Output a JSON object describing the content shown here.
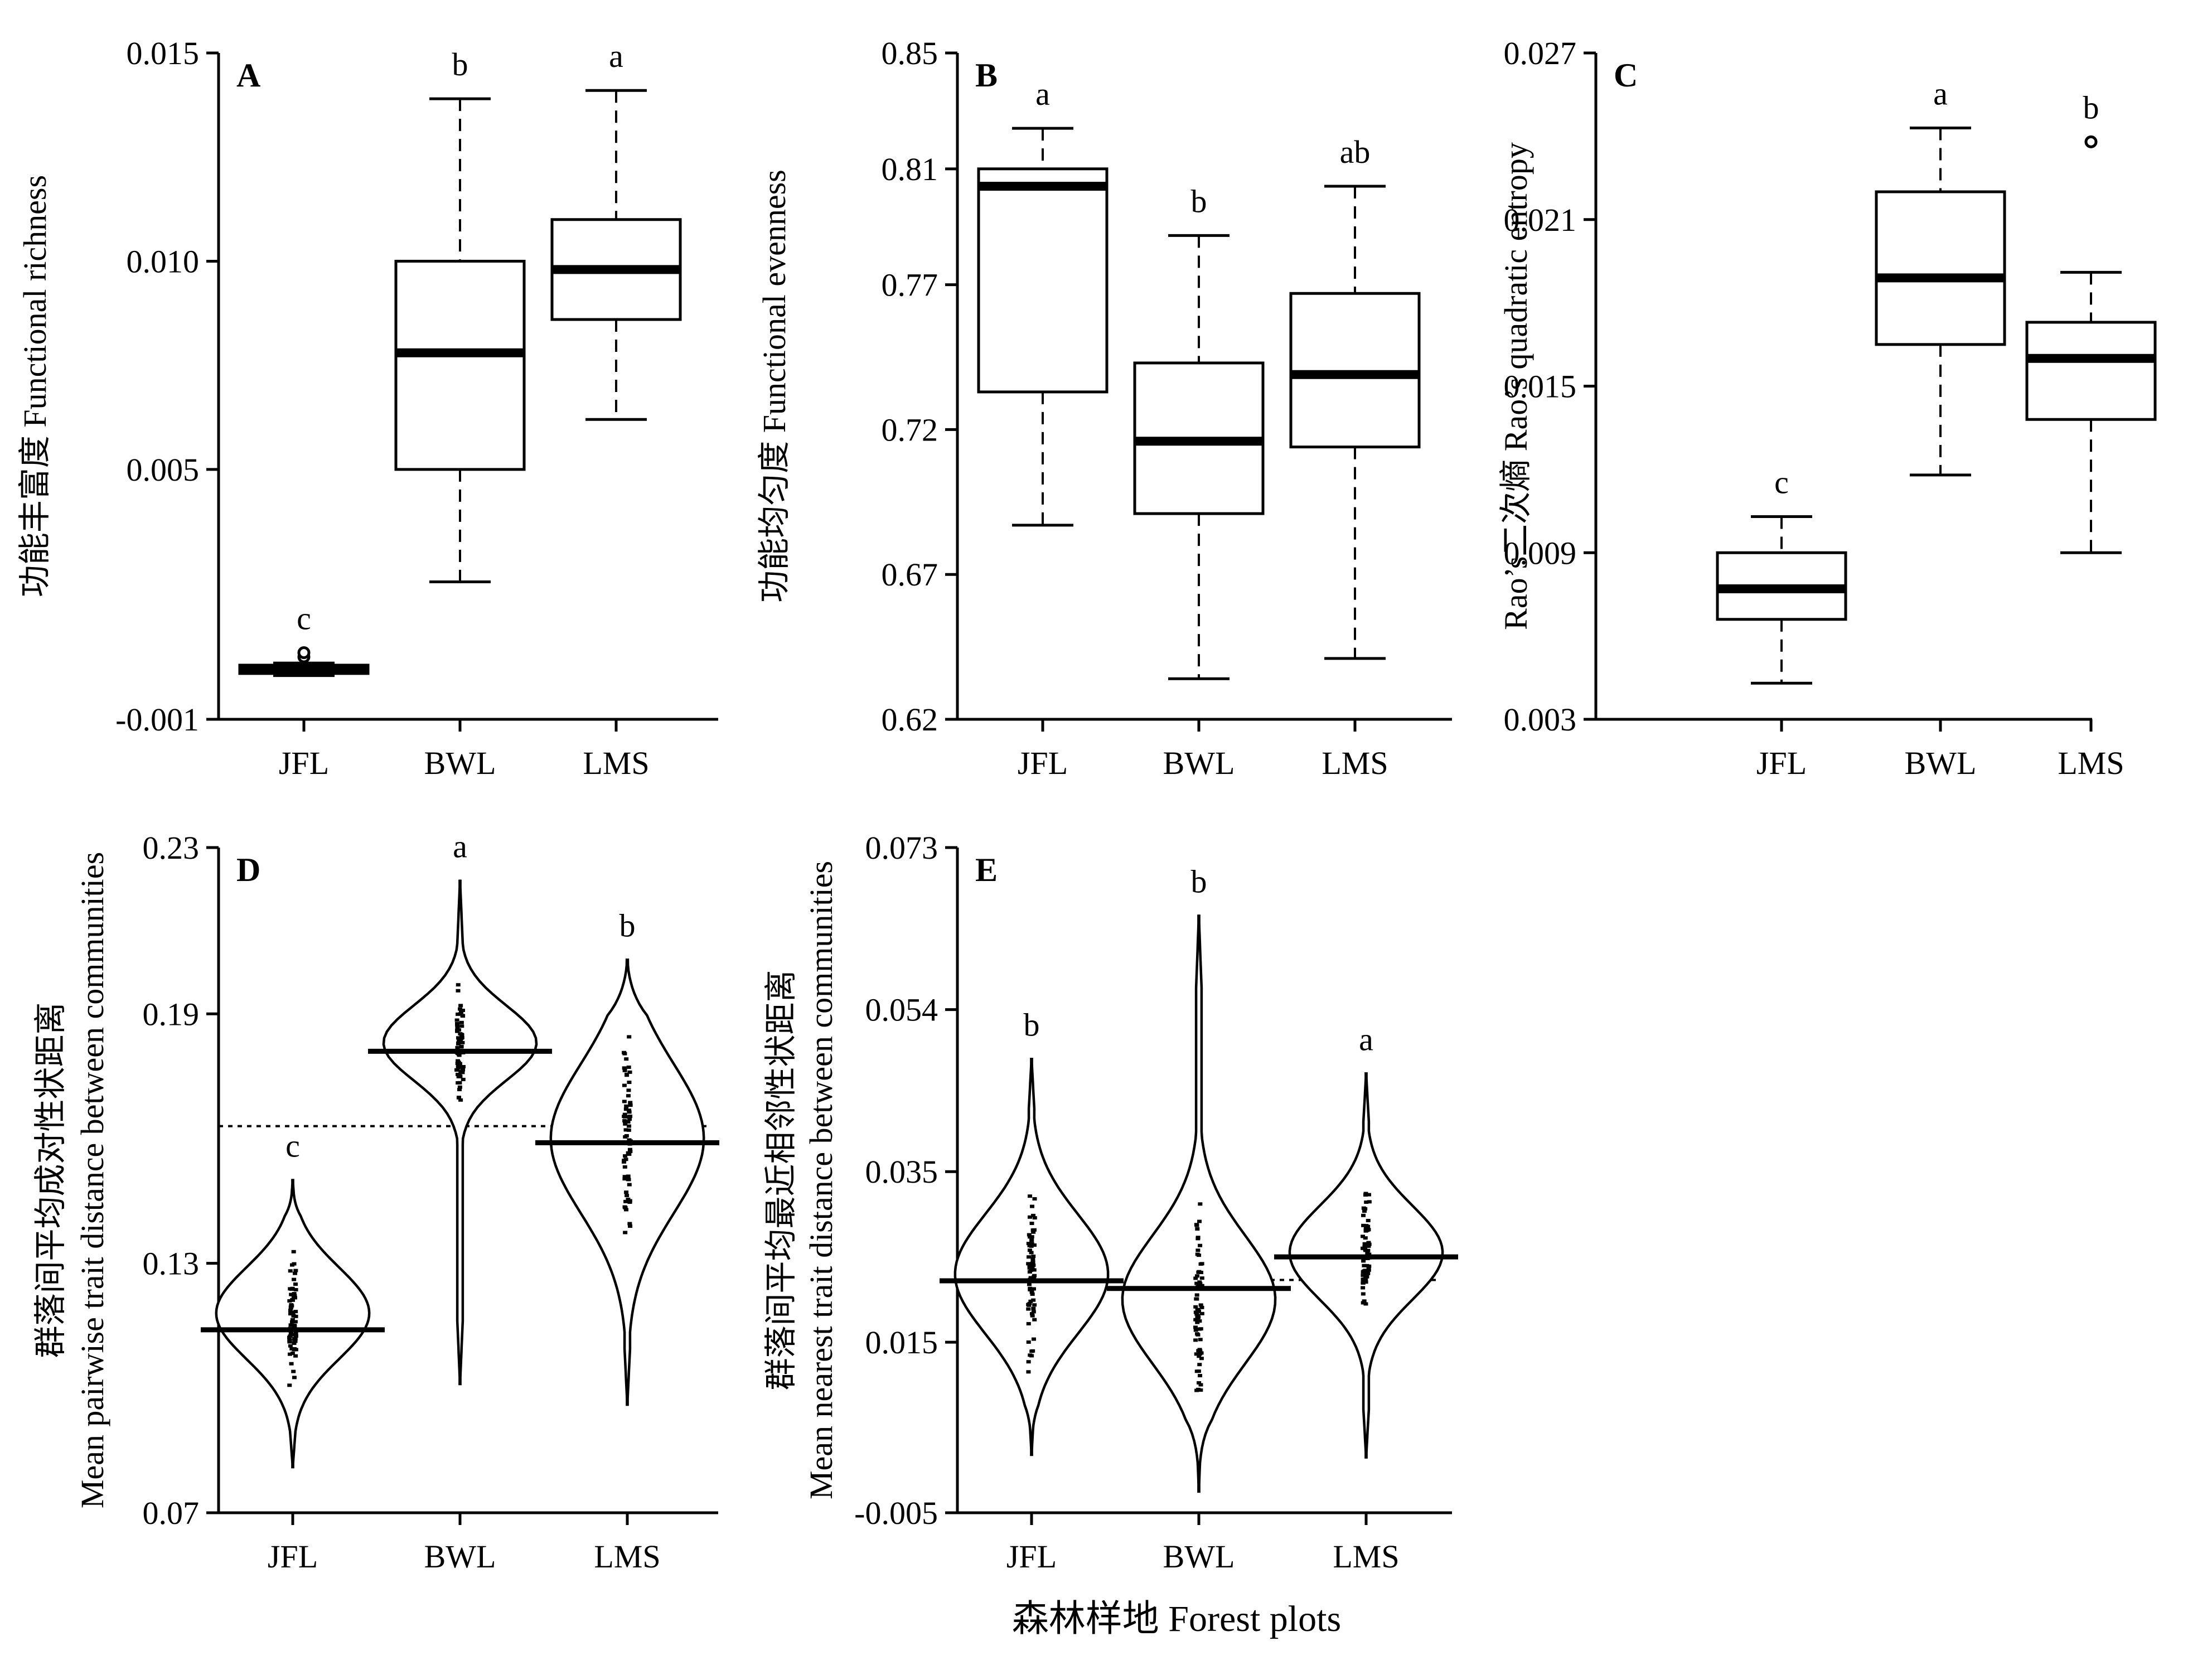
{
  "figure": {
    "xlabel": "森林样地 Forest plots"
  },
  "chart_data": [
    {
      "id": "A",
      "type": "box",
      "panel_label": "A",
      "ylabel": "功能丰富度 Functional richness",
      "categories": [
        "JFL",
        "BWL",
        "LMS"
      ],
      "yticks": [
        "-0.001",
        "0.005",
        "0.010",
        "0.015"
      ],
      "ylim": [
        -0.001,
        0.015
      ],
      "boxes": [
        {
          "category": "JFL",
          "whisker_low": 5e-05,
          "q1": 0.0001,
          "median": 0.0002,
          "q3": 0.0003,
          "whisker_high": 0.00035,
          "outliers": [
            0.0005,
            0.0006
          ],
          "letter": "c"
        },
        {
          "category": "BWL",
          "whisker_low": 0.0023,
          "q1": 0.005,
          "median": 0.0078,
          "q3": 0.01,
          "whisker_high": 0.0139,
          "outliers": [],
          "letter": "b"
        },
        {
          "category": "LMS",
          "whisker_low": 0.0062,
          "q1": 0.0086,
          "median": 0.0098,
          "q3": 0.011,
          "whisker_high": 0.0141,
          "outliers": [],
          "letter": "a"
        }
      ]
    },
    {
      "id": "B",
      "type": "box",
      "panel_label": "B",
      "ylabel": "功能均匀度 Functional evenness",
      "categories": [
        "JFL",
        "BWL",
        "LMS"
      ],
      "yticks": [
        "0.62",
        "0.67",
        "0.72",
        "0.77",
        "0.81",
        "0.85"
      ],
      "ylim": [
        0.62,
        0.85
      ],
      "boxes": [
        {
          "category": "JFL",
          "whisker_low": 0.687,
          "q1": 0.733,
          "median": 0.804,
          "q3": 0.81,
          "whisker_high": 0.824,
          "outliers": [],
          "letter": "a"
        },
        {
          "category": "BWL",
          "whisker_low": 0.634,
          "q1": 0.691,
          "median": 0.716,
          "q3": 0.743,
          "whisker_high": 0.787,
          "outliers": [],
          "letter": "b"
        },
        {
          "category": "LMS",
          "whisker_low": 0.641,
          "q1": 0.714,
          "median": 0.739,
          "q3": 0.767,
          "whisker_high": 0.804,
          "outliers": [],
          "letter": "ab"
        }
      ]
    },
    {
      "id": "C",
      "type": "box",
      "panel_label": "C",
      "ylabel": "Rao’s二次熵 Rao’s quadratic entropy",
      "categories": [
        "JFL",
        "BWL",
        "LMS"
      ],
      "yticks": [
        "0.003",
        "0.009",
        "0.015",
        "0.021",
        "0.027"
      ],
      "ylim": [
        0.003,
        0.027
      ],
      "boxes": [
        {
          "category": "JFL",
          "whisker_low": 0.0043,
          "q1": 0.0066,
          "median": 0.0077,
          "q3": 0.009,
          "whisker_high": 0.0103,
          "outliers": [],
          "letter": "c"
        },
        {
          "category": "BWL",
          "whisker_low": 0.0118,
          "q1": 0.0165,
          "median": 0.0189,
          "q3": 0.022,
          "whisker_high": 0.0243,
          "outliers": [],
          "letter": "a"
        },
        {
          "category": "LMS",
          "whisker_low": 0.009,
          "q1": 0.0138,
          "median": 0.016,
          "q3": 0.0173,
          "whisker_high": 0.0191,
          "outliers": [
            0.0238
          ],
          "letter": "b"
        }
      ]
    },
    {
      "id": "D",
      "type": "violin",
      "panel_label": "D",
      "ylabel": "群落间平均成对性状距离",
      "ylabel2": "Mean pairwise trait distance between communities",
      "categories": [
        "JFL",
        "BWL",
        "LMS"
      ],
      "yticks": [
        "0.07",
        "0.13",
        "0.19",
        "0.23"
      ],
      "ylim": [
        0.07,
        0.23
      ],
      "reference_line": 0.163,
      "violins": [
        {
          "category": "JFL",
          "min": 0.081,
          "max": 0.15,
          "mean": 0.114,
          "mode": 0.118,
          "spread": 0.011,
          "letter": "c"
        },
        {
          "category": "BWL",
          "min": 0.101,
          "max": 0.222,
          "mean": 0.181,
          "mode": 0.183,
          "spread": 0.009,
          "letter": "a"
        },
        {
          "category": "LMS",
          "min": 0.096,
          "max": 0.203,
          "mean": 0.159,
          "mode": 0.16,
          "spread": 0.018,
          "letter": "b"
        }
      ]
    },
    {
      "id": "E",
      "type": "violin",
      "panel_label": "E",
      "ylabel": "群落间平均最近相邻性状距离",
      "ylabel2": "Mean nearest trait distance between communities",
      "categories": [
        "JFL",
        "BWL",
        "LMS"
      ],
      "yticks": [
        "-0.005",
        "0.015",
        "0.035",
        "0.054",
        "0.073"
      ],
      "ylim": [
        -0.005,
        0.073
      ],
      "reference_line": 0.0223,
      "violins": [
        {
          "category": "JFL",
          "min": 0.0018,
          "max": 0.0482,
          "mean": 0.0222,
          "mode": 0.023,
          "spread": 0.007,
          "letter": "b"
        },
        {
          "category": "BWL",
          "min": -0.0025,
          "max": 0.065,
          "mean": 0.0213,
          "mode": 0.02,
          "spread": 0.0075,
          "letter": "b"
        },
        {
          "category": "LMS",
          "min": 0.0015,
          "max": 0.0465,
          "mean": 0.025,
          "mode": 0.0255,
          "spread": 0.0055,
          "letter": "a"
        }
      ]
    }
  ]
}
